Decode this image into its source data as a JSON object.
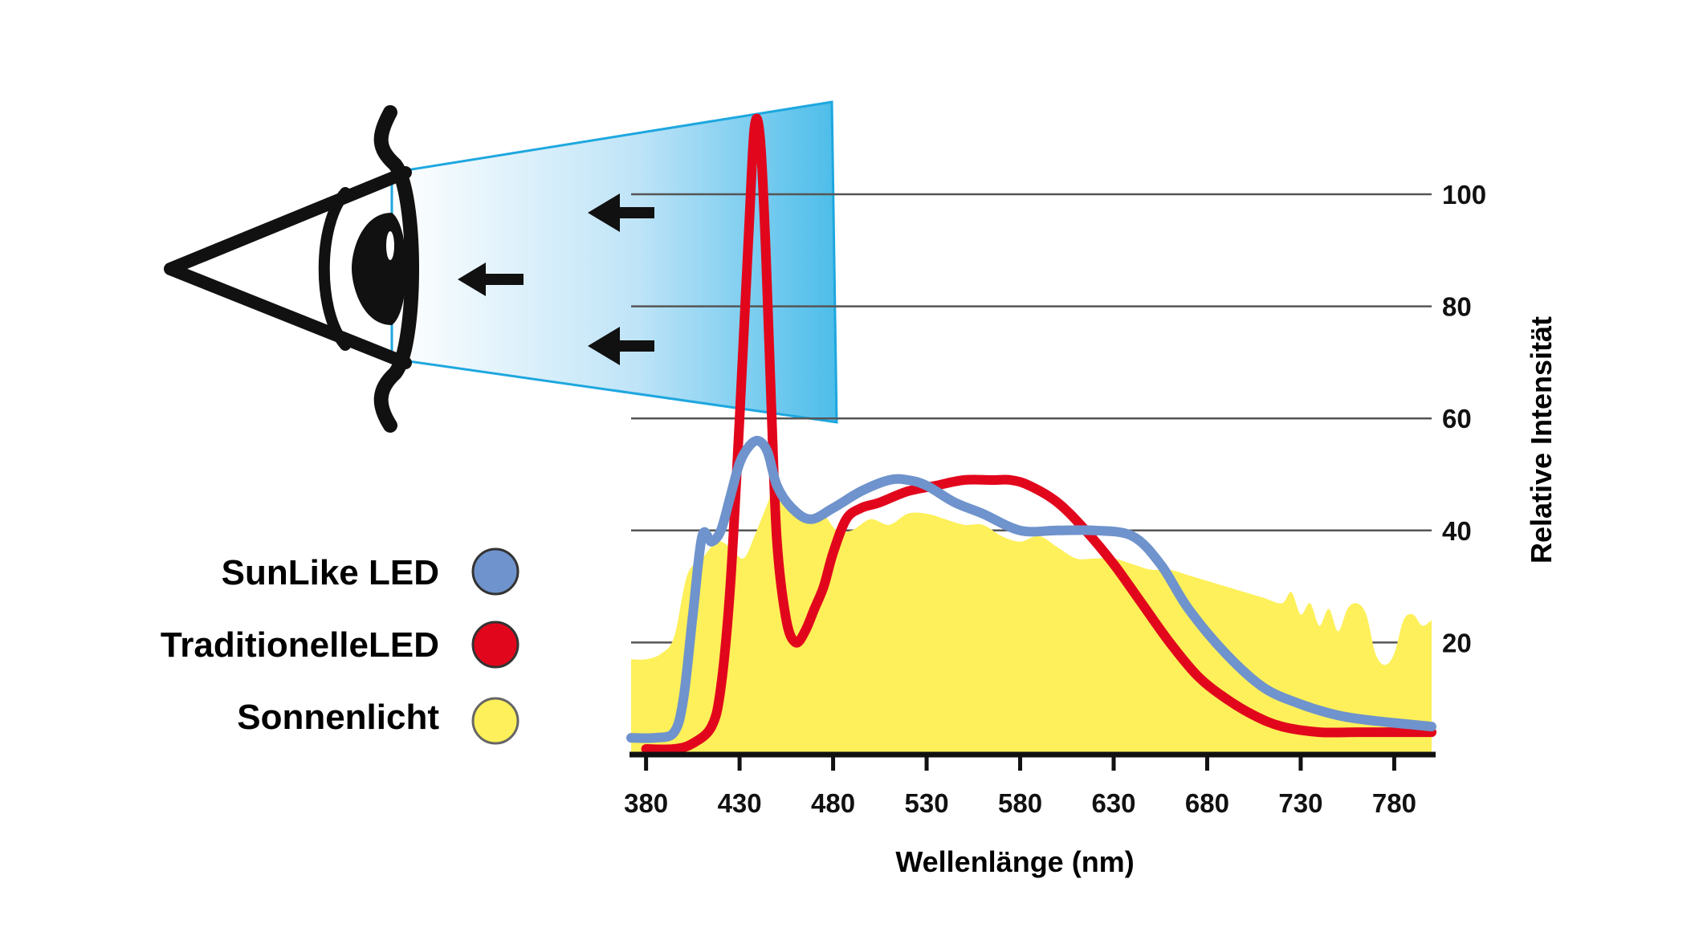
{
  "colors": {
    "sunlike": "#6f93cc",
    "traditional": "#e2061c",
    "sunlight": "#fdf05a",
    "beam_edge": "#1ea7df",
    "beam_dark": "#4cbdea",
    "grid": "#555555",
    "axis": "#111111"
  },
  "icons": {
    "eye": "eye-icon",
    "arrow": "arrow-left-icon"
  },
  "legend": [
    {
      "label": "SunLike LED",
      "color_key": "sunlike"
    },
    {
      "label": "TraditionelleLED",
      "color_key": "traditional"
    },
    {
      "label": "Sonnenlicht",
      "color_key": "sunlight"
    }
  ],
  "chart_data": {
    "type": "line",
    "xlabel": "Wellenlänge (nm)",
    "ylabel": "Relative Intensität",
    "xlim": [
      372,
      800
    ],
    "ylim": [
      0,
      100
    ],
    "x_ticks": [
      380,
      430,
      480,
      530,
      580,
      630,
      680,
      730,
      780
    ],
    "y_ticks": [
      20,
      40,
      60,
      80,
      100
    ],
    "grid": "horizontal",
    "legend_position": "left",
    "series": [
      {
        "name": "Sonnenlicht",
        "type": "area",
        "color_key": "sunlight",
        "x": [
          372,
          380,
          388,
          395,
          402,
          410,
          418,
          425,
          432,
          438,
          444,
          450,
          458,
          466,
          474,
          482,
          490,
          500,
          510,
          520,
          530,
          540,
          550,
          560,
          570,
          580,
          590,
          600,
          610,
          620,
          630,
          640,
          650,
          660,
          670,
          680,
          690,
          700,
          710,
          720,
          725,
          730,
          735,
          740,
          745,
          750,
          755,
          760,
          765,
          770,
          775,
          780,
          785,
          790,
          795,
          800
        ],
        "values": [
          17,
          17,
          18,
          21,
          32,
          35,
          38,
          37,
          35,
          39,
          44,
          48,
          44,
          42,
          43,
          40,
          40,
          42,
          41,
          43,
          43,
          42,
          41,
          41,
          39,
          38,
          39,
          37,
          35,
          35,
          35,
          34,
          33,
          33,
          32,
          31,
          30,
          29,
          28,
          27,
          29,
          25,
          27,
          23,
          26,
          22,
          26,
          27,
          25,
          18,
          16,
          18,
          24,
          25,
          23,
          24
        ]
      },
      {
        "name": "TraditionelleLED",
        "type": "line",
        "color_key": "traditional",
        "x": [
          380,
          395,
          405,
          415,
          420,
          425,
          430,
          435,
          438,
          441,
          444,
          447,
          450,
          455,
          460,
          465,
          470,
          475,
          480,
          487,
          495,
          505,
          520,
          535,
          550,
          565,
          575,
          585,
          600,
          615,
          630,
          645,
          660,
          675,
          690,
          705,
          720,
          740,
          760,
          780,
          800
        ],
        "values": [
          1,
          1,
          2,
          5,
          12,
          30,
          60,
          94,
          112,
          110,
          90,
          62,
          38,
          24,
          20,
          22,
          26,
          30,
          36,
          42,
          44,
          45,
          47,
          48,
          49,
          49,
          49,
          48,
          45,
          40,
          34,
          27,
          20,
          14,
          10,
          7,
          5,
          4,
          4,
          4,
          4
        ]
      },
      {
        "name": "SunLike LED",
        "type": "line",
        "color_key": "sunlike",
        "x": [
          372,
          385,
          395,
          400,
          405,
          410,
          415,
          420,
          425,
          430,
          435,
          440,
          445,
          450,
          458,
          468,
          480,
          495,
          510,
          520,
          530,
          545,
          560,
          580,
          600,
          620,
          640,
          655,
          670,
          690,
          710,
          730,
          750,
          770,
          800
        ],
        "values": [
          3,
          3,
          4,
          10,
          25,
          39,
          38,
          40,
          46,
          52,
          55,
          56,
          54,
          48,
          44,
          42,
          44,
          47,
          49,
          49,
          48,
          45,
          43,
          40,
          40,
          40,
          39,
          34,
          26,
          18,
          12,
          9,
          7,
          6,
          5
        ]
      }
    ]
  }
}
